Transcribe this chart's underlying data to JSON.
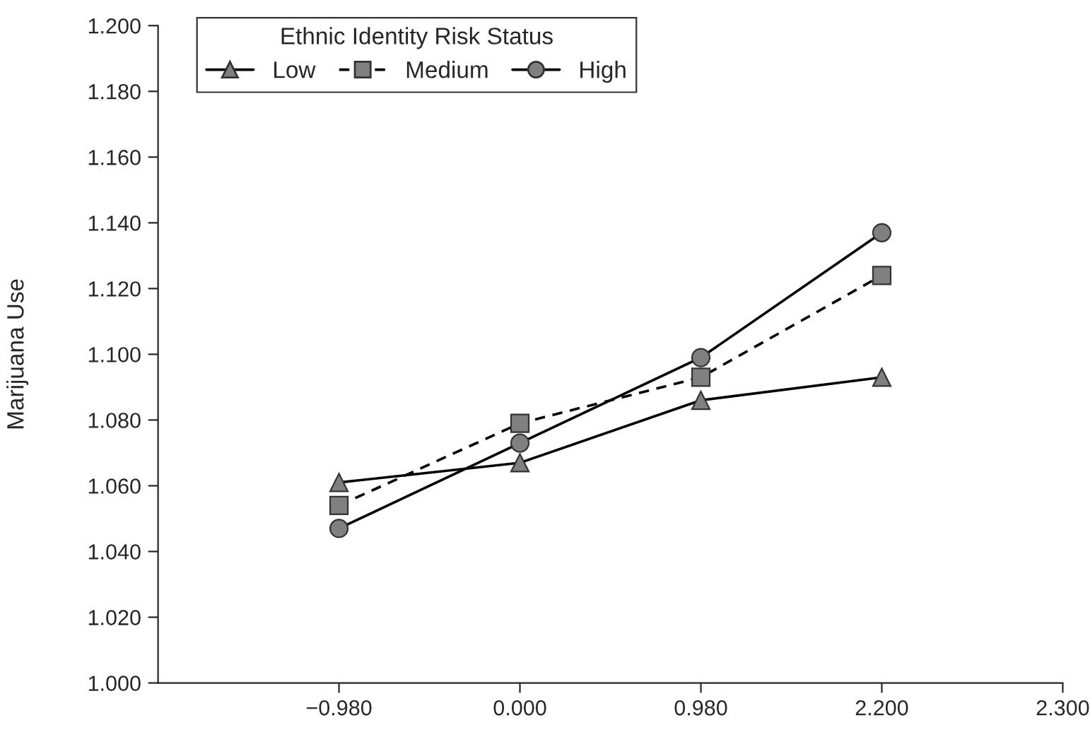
{
  "chart_data": {
    "type": "line",
    "ylabel": "Marijuana Use",
    "legend_title": "Ethnic Identity Risk Status",
    "legend": "top left",
    "grid": false,
    "categories": [
      "−0.980",
      "0.000",
      "0.980",
      "2.200",
      "2.300"
    ],
    "ylim": [
      1.0,
      1.2
    ],
    "yticks": [
      {
        "value": 1.0,
        "label": "1.000"
      },
      {
        "value": 1.02,
        "label": "1.020"
      },
      {
        "value": 1.04,
        "label": "1.040"
      },
      {
        "value": 1.06,
        "label": "1.060"
      },
      {
        "value": 1.08,
        "label": "1.080"
      },
      {
        "value": 1.1,
        "label": "1.100"
      },
      {
        "value": 1.12,
        "label": "1.120"
      },
      {
        "value": 1.14,
        "label": "1.140"
      },
      {
        "value": 1.16,
        "label": "1.160"
      },
      {
        "value": 1.18,
        "label": "1.180"
      },
      {
        "value": 1.2,
        "label": "1.200"
      }
    ],
    "series": [
      {
        "name": "Low",
        "color": "#808080",
        "marker": "triangle",
        "line_style": "solid",
        "values": [
          1.061,
          1.067,
          1.086,
          1.093,
          null
        ]
      },
      {
        "name": "Medium",
        "color": "#808080",
        "marker": "square",
        "line_style": "dashed",
        "values": [
          1.054,
          1.079,
          1.093,
          1.124,
          null
        ]
      },
      {
        "name": "High",
        "color": "#808080",
        "marker": "circle",
        "line_style": "solid",
        "values": [
          1.047,
          1.073,
          1.099,
          1.137,
          null
        ]
      }
    ]
  }
}
